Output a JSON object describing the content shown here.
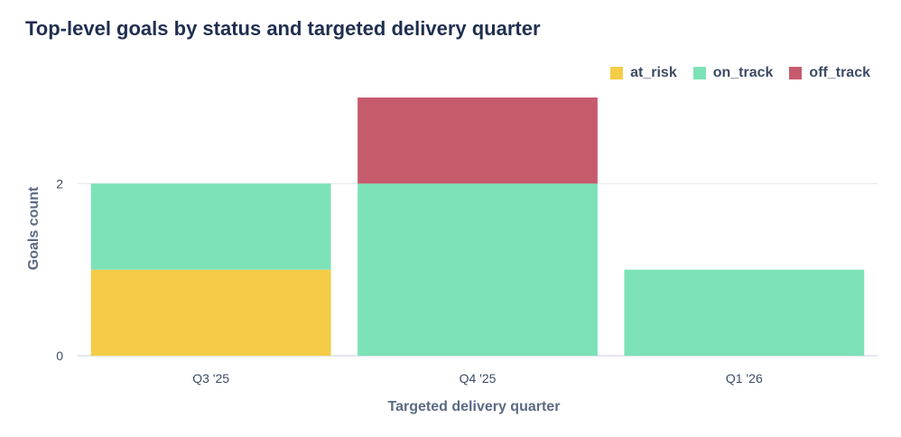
{
  "chart_data": {
    "type": "bar",
    "stacked": true,
    "title": "Top-level goals by status and targeted delivery quarter",
    "xlabel": "Targeted delivery quarter",
    "ylabel": "Goals count",
    "categories": [
      "Q3 '25",
      "Q4 '25",
      "Q1 '26"
    ],
    "series": [
      {
        "name": "at_risk",
        "color": "#f5cc48",
        "values": [
          1,
          0,
          0
        ]
      },
      {
        "name": "on_track",
        "color": "#7de2b8",
        "values": [
          1,
          2,
          1
        ]
      },
      {
        "name": "off_track",
        "color": "#c75b6e",
        "values": [
          0,
          1,
          0
        ]
      }
    ],
    "yticks": [
      0,
      2
    ],
    "ylim": [
      0,
      3
    ],
    "grid": true,
    "legend_position": "top-right"
  }
}
